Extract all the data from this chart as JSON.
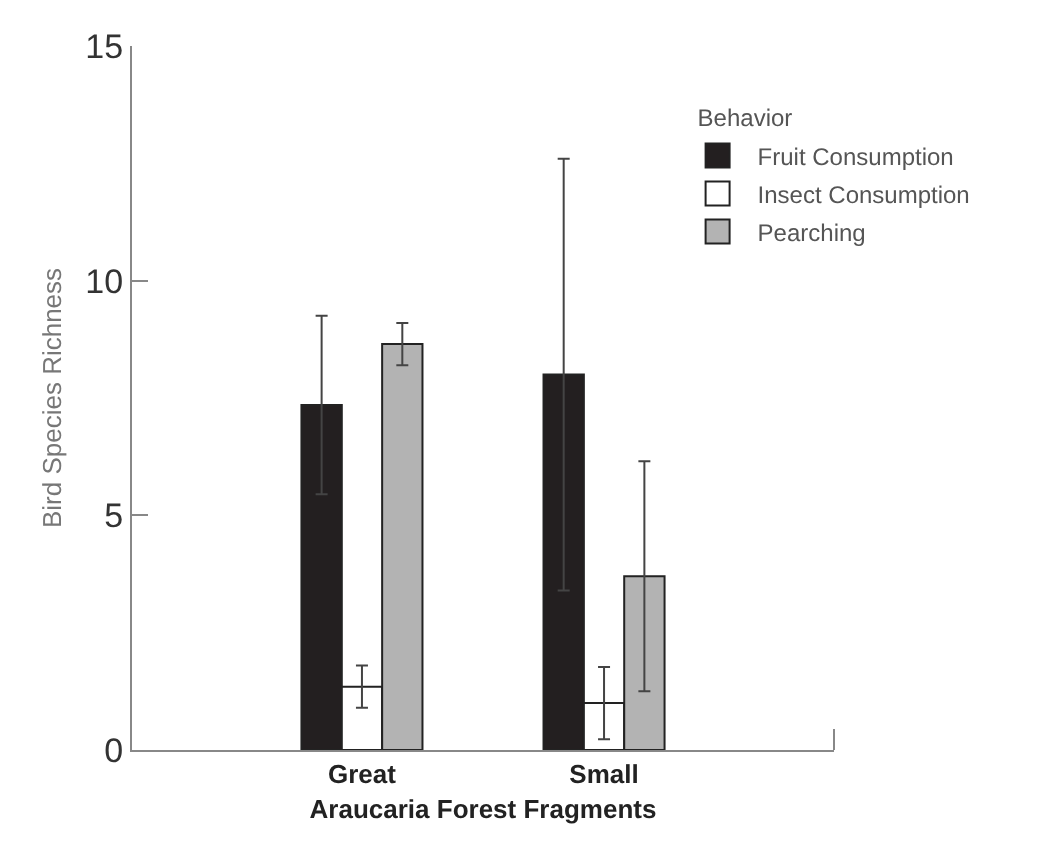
{
  "chart_data": {
    "type": "bar",
    "xlabel": "Araucaria Forest Fragments",
    "ylabel": "Bird Species Richness",
    "legend_title": "Behavior",
    "categories": [
      "Great",
      "Small"
    ],
    "series": [
      {
        "name": "Fruit Consumption",
        "color": "#231f20",
        "values": [
          7.35,
          8.0
        ],
        "errors": [
          1.9,
          4.6
        ]
      },
      {
        "name": "Insect Consumption",
        "color": "#ffffff",
        "values": [
          1.35,
          1.0
        ],
        "errors": [
          0.45,
          0.77
        ]
      },
      {
        "name": "Pearching",
        "color": "#b3b3b3",
        "values": [
          8.65,
          3.7
        ],
        "errors": [
          0.45,
          2.45
        ]
      }
    ],
    "ylim": [
      0,
      15
    ],
    "yticks": [
      0,
      5,
      10,
      15
    ],
    "legend": "top right"
  }
}
